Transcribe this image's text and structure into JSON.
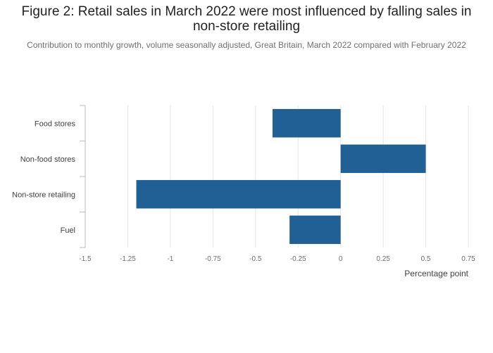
{
  "title": "Figure 2: Retail sales in March 2022 were most influenced by falling sales in non-store retailing",
  "subtitle": "Contribution to monthly growth, volume seasonally adjusted, Great Britain, March 2022 compared with February 2022",
  "colors": {
    "bar": "#206095",
    "grid": "#e6e6e6",
    "axis": "#bcbcbd"
  },
  "chart_data": {
    "type": "bar",
    "orientation": "horizontal",
    "categories": [
      "Food stores",
      "Non-food stores",
      "Non-store retailing",
      "Fuel"
    ],
    "values": [
      -0.4,
      0.5,
      -1.2,
      -0.3
    ],
    "xlabel": "Percentage point",
    "ylabel": "",
    "xlim": [
      -1.5,
      0.75
    ],
    "xticks": [
      "-1.5",
      "-1.25",
      "-1",
      "-0.75",
      "-0.5",
      "-0.25",
      "0",
      "0.25",
      "0.5",
      "0.75"
    ],
    "grid": true,
    "legend": "none"
  }
}
